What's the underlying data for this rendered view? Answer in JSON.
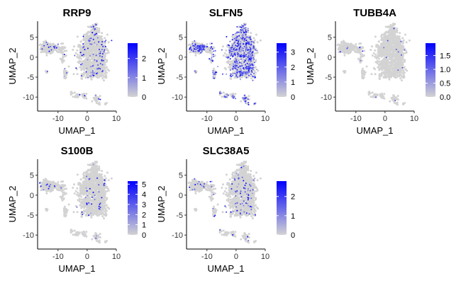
{
  "chart_data": [
    {
      "type": "scatter",
      "title": "RRP9",
      "xlabel": "UMAP_1",
      "ylabel": "UMAP_2",
      "xlim": [
        -17,
        10
      ],
      "ylim": [
        -13.5,
        9
      ],
      "x_ticks": [
        "-10",
        "0",
        "10"
      ],
      "x_tick_values": [
        -10,
        0,
        10
      ],
      "y_ticks": [
        "5",
        "0",
        "-5",
        "-10"
      ],
      "y_tick_values": [
        5,
        0,
        -5,
        -10
      ],
      "grid": false,
      "legend": "right",
      "color_scale": {
        "low": "#d3d3d3",
        "high": "#0000ff",
        "min": 0,
        "max": 2.8,
        "ticks": [
          "0",
          "1",
          "2"
        ],
        "tick_values": [
          0,
          1,
          2
        ]
      },
      "expression_density": 0.07
    },
    {
      "type": "scatter",
      "title": "SLFN5",
      "xlabel": "UMAP_1",
      "ylabel": "UMAP_2",
      "xlim": [
        -17,
        10
      ],
      "ylim": [
        -13.5,
        9
      ],
      "x_ticks": [
        "-10",
        "0",
        "10"
      ],
      "x_tick_values": [
        -10,
        0,
        10
      ],
      "y_ticks": [
        "5",
        "0",
        "-5",
        "-10"
      ],
      "y_tick_values": [
        5,
        0,
        -5,
        -10
      ],
      "grid": false,
      "legend": "right",
      "color_scale": {
        "low": "#d3d3d3",
        "high": "#0000ff",
        "min": 0,
        "max": 3.6,
        "ticks": [
          "0",
          "1",
          "2",
          "3"
        ],
        "tick_values": [
          0,
          1,
          2,
          3
        ]
      },
      "expression_density": 0.35
    },
    {
      "type": "scatter",
      "title": "TUBB4A",
      "xlabel": "UMAP_1",
      "ylabel": "UMAP_2",
      "xlim": [
        -17,
        10
      ],
      "ylim": [
        -13.5,
        9
      ],
      "x_ticks": [
        "-10",
        "0",
        "10"
      ],
      "x_tick_values": [
        -10,
        0,
        10
      ],
      "y_ticks": [
        "5",
        "0",
        "-5",
        "-10"
      ],
      "y_tick_values": [
        5,
        0,
        -5,
        -10
      ],
      "grid": false,
      "legend": "right",
      "color_scale": {
        "low": "#d3d3d3",
        "high": "#0000ff",
        "min": 0,
        "max": 1.95,
        "ticks": [
          "0.0",
          "0.5",
          "1.0",
          "1.5"
        ],
        "tick_values": [
          0,
          0.5,
          1.0,
          1.5
        ]
      },
      "expression_density": 0.02
    },
    {
      "type": "scatter",
      "title": "S100B",
      "xlabel": "UMAP_1",
      "ylabel": "UMAP_2",
      "xlim": [
        -17,
        10
      ],
      "ylim": [
        -13.5,
        9
      ],
      "x_ticks": [
        "-10",
        "0",
        "10"
      ],
      "x_tick_values": [
        -10,
        0,
        10
      ],
      "y_ticks": [
        "5",
        "0",
        "-5",
        "-10"
      ],
      "y_tick_values": [
        5,
        0,
        -5,
        -10
      ],
      "grid": false,
      "legend": "right",
      "color_scale": {
        "low": "#d3d3d3",
        "high": "#0000ff",
        "min": 0,
        "max": 5.3,
        "ticks": [
          "0",
          "1",
          "2",
          "3",
          "4",
          "5"
        ],
        "tick_values": [
          0,
          1,
          2,
          3,
          4,
          5
        ]
      },
      "expression_density": 0.03
    },
    {
      "type": "scatter",
      "title": "SLC38A5",
      "xlabel": "UMAP_1",
      "ylabel": "UMAP_2",
      "xlim": [
        -17,
        10
      ],
      "ylim": [
        -13.5,
        9
      ],
      "x_ticks": [
        "-10",
        "0",
        "10"
      ],
      "x_tick_values": [
        -10,
        0,
        10
      ],
      "y_ticks": [
        "5",
        "0",
        "-5",
        "-10"
      ],
      "y_tick_values": [
        5,
        0,
        -5,
        -10
      ],
      "grid": false,
      "legend": "right",
      "color_scale": {
        "low": "#d3d3d3",
        "high": "#0000ff",
        "min": 0,
        "max": 2.8,
        "ticks": [
          "0",
          "1",
          "2"
        ],
        "tick_values": [
          0,
          1,
          2
        ]
      },
      "expression_density": 0.06
    }
  ]
}
